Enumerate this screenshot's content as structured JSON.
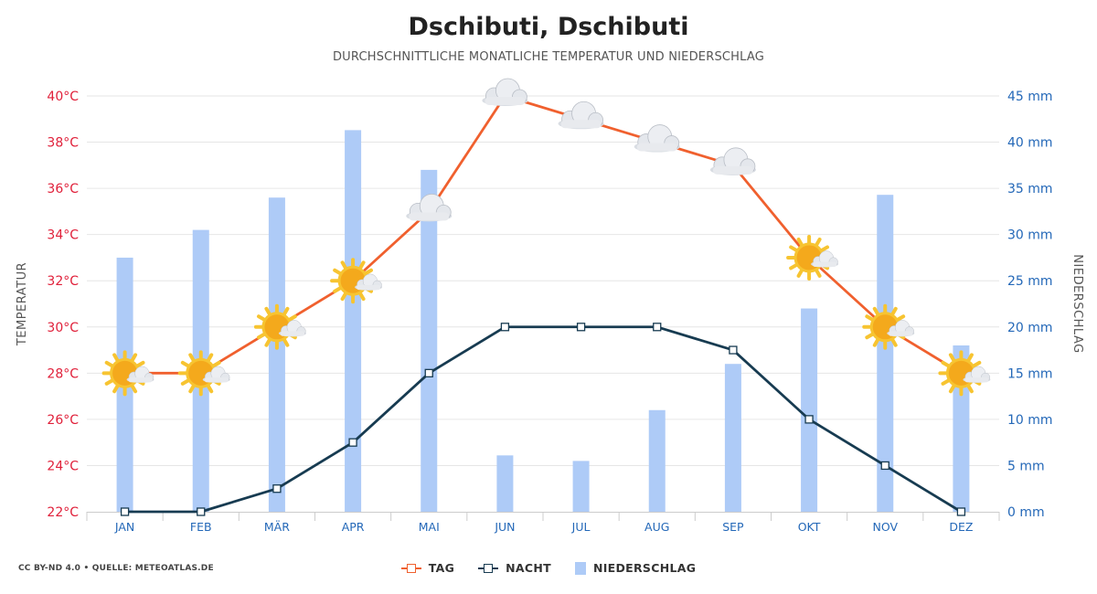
{
  "title": "Dschibuti, Dschibuti",
  "subtitle": "DURCHSCHNITTLICHE MONATLICHE TEMPERATUR UND NIEDERSCHLAG",
  "credit": "CC BY-ND 4.0 • QUELLE: METEOATLAS.DE",
  "colors": {
    "tag": "#f0602e",
    "nacht": "#173b51",
    "niederschlag": "#aecbf7",
    "temp_axis": "#e0203a",
    "precip_axis": "#2468b8",
    "month_labels": "#2468b8",
    "grid": "#e6e6e6"
  },
  "legend": {
    "tag": "TAG",
    "nacht": "NACHT",
    "niederschlag": "NIEDERSCHLAG"
  },
  "chart_data": {
    "type": "bar+line",
    "categories": [
      "JAN",
      "FEB",
      "MÄR",
      "APR",
      "MAI",
      "JUN",
      "JUL",
      "AUG",
      "SEP",
      "OKT",
      "NOV",
      "DEZ"
    ],
    "series": [
      {
        "name": "TAG",
        "type": "line",
        "axis": "temperature",
        "values": [
          28,
          28,
          30,
          32,
          35,
          40,
          39,
          38,
          37,
          33,
          30,
          28
        ]
      },
      {
        "name": "NACHT",
        "type": "line",
        "axis": "temperature",
        "values": [
          22,
          22,
          23,
          25,
          28,
          30,
          30,
          30,
          29,
          26,
          24,
          22
        ]
      },
      {
        "name": "NIEDERSCHLAG",
        "type": "bar",
        "axis": "precipitation",
        "values": [
          27.5,
          30.5,
          34,
          41.3,
          37,
          6.1,
          5.5,
          11,
          16,
          22,
          34.3,
          18
        ]
      }
    ],
    "weather_icons": [
      "sun-cloud",
      "sun-cloud",
      "sun-cloud",
      "sun-cloud",
      "cloud",
      "cloud",
      "cloud",
      "cloud",
      "cloud",
      "sun-cloud",
      "sun-cloud",
      "sun-cloud"
    ],
    "y_left": {
      "label": "TEMPERATUR",
      "min": 22,
      "max": 40,
      "step": 2,
      "unit": "°C"
    },
    "y_right": {
      "label": "NIEDERSCHLAG",
      "min": 0,
      "max": 45,
      "step": 5,
      "unit": " mm"
    },
    "grid": true,
    "legend_position": "bottom"
  }
}
